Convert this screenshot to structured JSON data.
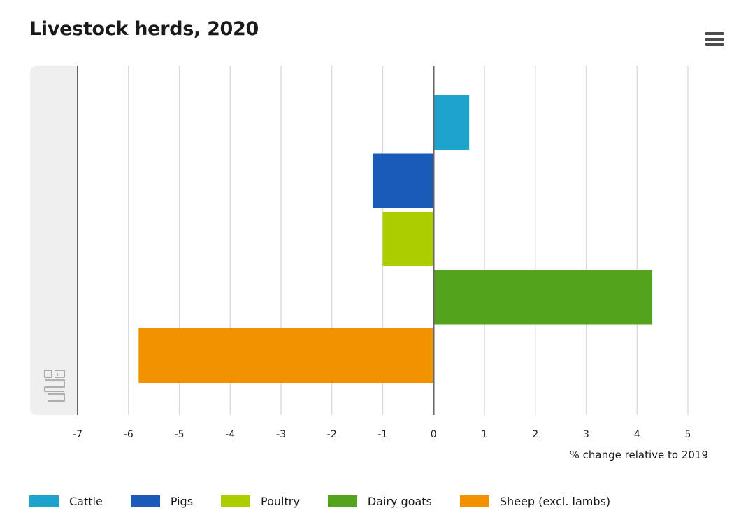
{
  "header": {
    "title": "Livestock herds, 2020",
    "menu_icon": "hamburger-menu-icon"
  },
  "colors": {
    "cattle": "#1ea3cf",
    "pigs": "#1a5ab8",
    "poultry": "#accd00",
    "dairy_goats": "#53a31d",
    "sheep": "#f39200",
    "plot_band": "#efefef",
    "grid": "#d9d9d9",
    "zero_line": "#666666"
  },
  "chart_data": {
    "type": "bar",
    "orientation": "horizontal",
    "title": "Livestock herds, 2020",
    "xlabel": "% change relative to 2019",
    "ylabel": "",
    "xlim": [
      -7,
      5
    ],
    "xticks": [
      -7,
      -6,
      -5,
      -4,
      -3,
      -2,
      -1,
      0,
      1,
      2,
      3,
      4,
      5
    ],
    "xtick_labels": [
      "-7",
      "-6",
      "-5",
      "-4",
      "-3",
      "-2",
      "-1",
      "0",
      "1",
      "2",
      "3",
      "4",
      "5"
    ],
    "grid": true,
    "legend_position": "bottom-left",
    "series": [
      {
        "name": "Cattle",
        "value": 0.7,
        "color": "#1ea3cf"
      },
      {
        "name": "Pigs",
        "value": -1.2,
        "color": "#1a5ab8"
      },
      {
        "name": "Poultry",
        "value": -1.0,
        "color": "#accd00"
      },
      {
        "name": "Dairy goats",
        "value": 4.3,
        "color": "#53a31d"
      },
      {
        "name": "Sheep (excl. lambs)",
        "value": -5.8,
        "color": "#f39200"
      }
    ]
  },
  "logo": {
    "name": "cbs-logo-icon"
  }
}
